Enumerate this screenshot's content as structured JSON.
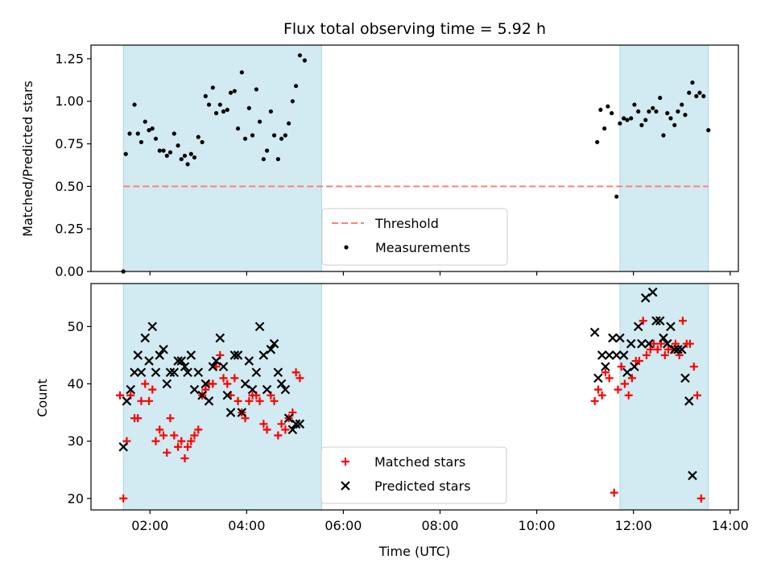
{
  "chart_data": [
    {
      "type": "scatter",
      "title": "Flux total observing time = 5.92 h",
      "ylabel": "Matched/Predicted stars",
      "xlabel": "",
      "xlim": [
        0.78,
        14.17
      ],
      "ylim": [
        0.0,
        1.33
      ],
      "y_ticks": [
        0.0,
        0.25,
        0.5,
        0.75,
        1.0,
        1.25
      ],
      "y_tick_labels": [
        "0.00",
        "0.25",
        "0.50",
        "0.75",
        "1.00",
        "1.25"
      ],
      "x_ticks": [
        2,
        4,
        6,
        8,
        10,
        12,
        14
      ],
      "x_tick_labels": [
        "02:00",
        "04:00",
        "06:00",
        "08:00",
        "10:00",
        "12:00",
        "14:00"
      ],
      "grid": false,
      "legend_placement": "lower center",
      "shaded_intervals": [
        [
          1.45,
          5.55
        ],
        [
          11.72,
          13.55
        ]
      ],
      "threshold": {
        "name": "Threshold",
        "y": 0.5,
        "x": [
          1.45,
          13.55
        ],
        "color": "#ff7f7f",
        "style": "dashed"
      },
      "series": [
        {
          "name": "Measurements",
          "color": "#000000",
          "marker": "dot",
          "points": [
            [
              1.45,
              0.0
            ],
            [
              1.5,
              0.69
            ],
            [
              1.58,
              0.81
            ],
            [
              1.68,
              0.98
            ],
            [
              1.75,
              0.81
            ],
            [
              1.82,
              0.76
            ],
            [
              1.9,
              0.88
            ],
            [
              1.98,
              0.83
            ],
            [
              2.05,
              0.84
            ],
            [
              2.12,
              0.78
            ],
            [
              2.2,
              0.71
            ],
            [
              2.28,
              0.71
            ],
            [
              2.35,
              0.68
            ],
            [
              2.42,
              0.7
            ],
            [
              2.5,
              0.81
            ],
            [
              2.58,
              0.74
            ],
            [
              2.65,
              0.66
            ],
            [
              2.72,
              0.68
            ],
            [
              2.78,
              0.63
            ],
            [
              2.85,
              0.69
            ],
            [
              2.92,
              0.67
            ],
            [
              3.0,
              0.79
            ],
            [
              3.08,
              0.76
            ],
            [
              3.15,
              1.03
            ],
            [
              3.22,
              0.98
            ],
            [
              3.3,
              1.08
            ],
            [
              3.37,
              0.93
            ],
            [
              3.45,
              0.98
            ],
            [
              3.52,
              0.94
            ],
            [
              3.6,
              0.95
            ],
            [
              3.67,
              1.05
            ],
            [
              3.75,
              1.06
            ],
            [
              3.82,
              0.84
            ],
            [
              3.9,
              1.17
            ],
            [
              3.97,
              0.78
            ],
            [
              4.05,
              0.96
            ],
            [
              4.12,
              0.8
            ],
            [
              4.2,
              1.07
            ],
            [
              4.27,
              0.88
            ],
            [
              4.35,
              0.66
            ],
            [
              4.42,
              0.71
            ],
            [
              4.5,
              0.94
            ],
            [
              4.57,
              0.8
            ],
            [
              4.65,
              0.66
            ],
            [
              4.72,
              0.78
            ],
            [
              4.8,
              0.8
            ],
            [
              4.87,
              0.87
            ],
            [
              4.95,
              1.0
            ],
            [
              5.02,
              1.09
            ],
            [
              5.1,
              1.27
            ],
            [
              5.2,
              1.24
            ],
            [
              11.25,
              0.76
            ],
            [
              11.32,
              0.95
            ],
            [
              11.4,
              0.84
            ],
            [
              11.47,
              0.97
            ],
            [
              11.55,
              0.93
            ],
            [
              11.65,
              0.44
            ],
            [
              11.72,
              0.87
            ],
            [
              11.8,
              0.9
            ],
            [
              11.87,
              0.89
            ],
            [
              11.95,
              0.9
            ],
            [
              12.02,
              0.98
            ],
            [
              12.1,
              0.94
            ],
            [
              12.17,
              0.86
            ],
            [
              12.25,
              0.89
            ],
            [
              12.32,
              0.94
            ],
            [
              12.4,
              0.96
            ],
            [
              12.47,
              0.94
            ],
            [
              12.55,
              1.02
            ],
            [
              12.62,
              0.8
            ],
            [
              12.7,
              0.93
            ],
            [
              12.77,
              0.9
            ],
            [
              12.85,
              0.86
            ],
            [
              12.92,
              0.94
            ],
            [
              13.0,
              0.98
            ],
            [
              13.07,
              0.92
            ],
            [
              13.15,
              1.05
            ],
            [
              13.22,
              1.11
            ],
            [
              13.3,
              1.03
            ],
            [
              13.37,
              1.05
            ],
            [
              13.45,
              1.03
            ],
            [
              13.55,
              0.83
            ]
          ]
        }
      ]
    },
    {
      "type": "scatter",
      "title": "",
      "xlabel": "Time (UTC)",
      "ylabel": "Count",
      "xlim": [
        0.78,
        14.17
      ],
      "ylim": [
        18.0,
        57.5
      ],
      "y_ticks": [
        20,
        30,
        40,
        50
      ],
      "y_tick_labels": [
        "20",
        "30",
        "40",
        "50"
      ],
      "x_ticks": [
        2,
        4,
        6,
        8,
        10,
        12,
        14
      ],
      "x_tick_labels": [
        "02:00",
        "04:00",
        "06:00",
        "08:00",
        "10:00",
        "12:00",
        "14:00"
      ],
      "grid": false,
      "legend_placement": "lower center",
      "shaded_intervals": [
        [
          1.45,
          5.55
        ],
        [
          11.72,
          13.55
        ]
      ],
      "series": [
        {
          "name": "Matched stars",
          "color": "#ff0000",
          "marker": "plus",
          "points": [
            [
              1.38,
              38
            ],
            [
              1.45,
              20
            ],
            [
              1.52,
              30
            ],
            [
              1.6,
              38
            ],
            [
              1.68,
              34
            ],
            [
              1.75,
              34
            ],
            [
              1.82,
              37
            ],
            [
              1.9,
              40
            ],
            [
              1.98,
              37
            ],
            [
              2.05,
              39
            ],
            [
              2.12,
              30
            ],
            [
              2.2,
              32
            ],
            [
              2.28,
              31
            ],
            [
              2.35,
              28
            ],
            [
              2.42,
              34
            ],
            [
              2.5,
              31
            ],
            [
              2.58,
              29
            ],
            [
              2.65,
              30
            ],
            [
              2.72,
              27
            ],
            [
              2.78,
              29
            ],
            [
              2.85,
              30
            ],
            [
              2.92,
              31
            ],
            [
              3.0,
              32
            ],
            [
              3.08,
              38
            ],
            [
              3.15,
              39
            ],
            [
              3.22,
              40
            ],
            [
              3.3,
              40
            ],
            [
              3.37,
              43
            ],
            [
              3.45,
              45
            ],
            [
              3.52,
              41
            ],
            [
              3.6,
              40
            ],
            [
              3.67,
              38
            ],
            [
              3.75,
              41
            ],
            [
              3.82,
              37
            ],
            [
              3.9,
              35
            ],
            [
              3.97,
              34
            ],
            [
              4.05,
              37
            ],
            [
              4.12,
              38
            ],
            [
              4.2,
              38
            ],
            [
              4.27,
              37
            ],
            [
              4.35,
              33
            ],
            [
              4.42,
              32
            ],
            [
              4.5,
              38
            ],
            [
              4.57,
              37
            ],
            [
              4.65,
              31
            ],
            [
              4.72,
              33
            ],
            [
              4.8,
              32
            ],
            [
              4.87,
              34
            ],
            [
              4.95,
              35
            ],
            [
              5.02,
              42
            ],
            [
              5.1,
              41
            ],
            [
              11.2,
              37
            ],
            [
              11.27,
              39
            ],
            [
              11.35,
              38
            ],
            [
              11.42,
              42
            ],
            [
              11.5,
              41
            ],
            [
              11.6,
              21
            ],
            [
              11.68,
              39
            ],
            [
              11.75,
              43
            ],
            [
              11.82,
              40
            ],
            [
              11.9,
              38
            ],
            [
              11.97,
              41
            ],
            [
              12.05,
              44
            ],
            [
              12.12,
              44
            ],
            [
              12.2,
              51
            ],
            [
              12.27,
              45
            ],
            [
              12.35,
              46
            ],
            [
              12.42,
              47
            ],
            [
              12.5,
              46
            ],
            [
              12.57,
              47
            ],
            [
              12.65,
              45
            ],
            [
              12.72,
              46
            ],
            [
              12.8,
              46
            ],
            [
              12.87,
              47
            ],
            [
              12.95,
              45
            ],
            [
              13.02,
              51
            ],
            [
              13.1,
              47
            ],
            [
              13.17,
              47
            ],
            [
              13.25,
              43
            ],
            [
              13.32,
              38
            ],
            [
              13.4,
              20
            ]
          ]
        },
        {
          "name": "Predicted stars",
          "color": "#000000",
          "marker": "x",
          "points": [
            [
              1.45,
              29
            ],
            [
              1.52,
              37
            ],
            [
              1.6,
              39
            ],
            [
              1.68,
              42
            ],
            [
              1.75,
              45
            ],
            [
              1.82,
              42
            ],
            [
              1.9,
              48
            ],
            [
              1.98,
              44
            ],
            [
              2.05,
              50
            ],
            [
              2.12,
              42
            ],
            [
              2.2,
              45
            ],
            [
              2.28,
              46
            ],
            [
              2.35,
              40
            ],
            [
              2.42,
              42
            ],
            [
              2.5,
              42
            ],
            [
              2.58,
              44
            ],
            [
              2.65,
              44
            ],
            [
              2.72,
              43
            ],
            [
              2.78,
              42
            ],
            [
              2.85,
              45
            ],
            [
              2.92,
              39
            ],
            [
              3.0,
              42
            ],
            [
              3.08,
              38
            ],
            [
              3.15,
              40
            ],
            [
              3.22,
              37
            ],
            [
              3.3,
              43
            ],
            [
              3.37,
              44
            ],
            [
              3.45,
              48
            ],
            [
              3.52,
              43
            ],
            [
              3.6,
              38
            ],
            [
              3.67,
              35
            ],
            [
              3.75,
              45
            ],
            [
              3.82,
              45
            ],
            [
              3.9,
              35
            ],
            [
              3.97,
              40
            ],
            [
              4.05,
              44
            ],
            [
              4.12,
              39
            ],
            [
              4.2,
              42
            ],
            [
              4.27,
              50
            ],
            [
              4.35,
              45
            ],
            [
              4.42,
              39
            ],
            [
              4.5,
              46
            ],
            [
              4.57,
              47
            ],
            [
              4.65,
              42
            ],
            [
              4.72,
              40
            ],
            [
              4.8,
              39
            ],
            [
              4.87,
              34
            ],
            [
              4.95,
              32
            ],
            [
              5.02,
              33
            ],
            [
              5.1,
              33
            ],
            [
              11.2,
              49
            ],
            [
              11.27,
              41
            ],
            [
              11.35,
              45
            ],
            [
              11.42,
              43
            ],
            [
              11.5,
              45
            ],
            [
              11.57,
              48
            ],
            [
              11.65,
              45
            ],
            [
              11.72,
              48
            ],
            [
              11.8,
              45
            ],
            [
              11.87,
              42
            ],
            [
              11.95,
              47
            ],
            [
              12.02,
              43
            ],
            [
              12.1,
              50
            ],
            [
              12.17,
              47
            ],
            [
              12.25,
              55
            ],
            [
              12.32,
              47
            ],
            [
              12.4,
              56
            ],
            [
              12.47,
              51
            ],
            [
              12.55,
              51
            ],
            [
              12.62,
              48
            ],
            [
              12.7,
              47
            ],
            [
              12.77,
              50
            ],
            [
              12.85,
              46
            ],
            [
              12.92,
              46
            ],
            [
              13.0,
              46
            ],
            [
              13.07,
              41
            ],
            [
              13.15,
              37
            ],
            [
              13.22,
              24
            ]
          ]
        }
      ]
    }
  ]
}
